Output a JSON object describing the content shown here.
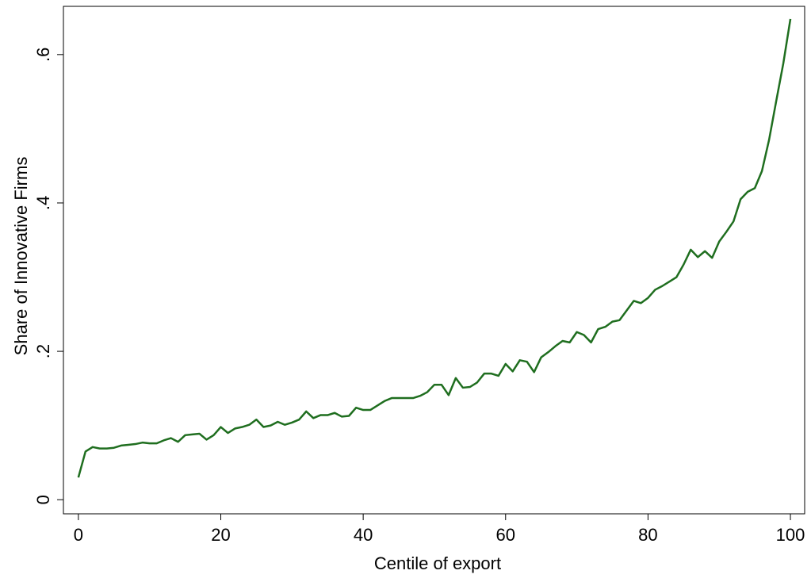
{
  "chart_data": {
    "type": "line",
    "xlabel": "Centile of export",
    "ylabel": "Share of Innovative Firms",
    "color": "#1f6e1f",
    "x": [
      0,
      1,
      2,
      3,
      4,
      5,
      6,
      7,
      8,
      9,
      10,
      11,
      12,
      13,
      14,
      15,
      16,
      17,
      18,
      19,
      20,
      21,
      22,
      23,
      24,
      25,
      26,
      27,
      28,
      29,
      30,
      31,
      32,
      33,
      34,
      35,
      36,
      37,
      38,
      39,
      40,
      41,
      42,
      43,
      44,
      45,
      46,
      47,
      48,
      49,
      50,
      51,
      52,
      53,
      54,
      55,
      56,
      57,
      58,
      59,
      60,
      61,
      62,
      63,
      64,
      65,
      66,
      67,
      68,
      69,
      70,
      71,
      72,
      73,
      74,
      75,
      76,
      77,
      78,
      79,
      80,
      81,
      82,
      83,
      84,
      85,
      86,
      87,
      88,
      89,
      90,
      91,
      92,
      93,
      94,
      95,
      96,
      97,
      98,
      99,
      100
    ],
    "values": [
      0.03,
      0.065,
      0.071,
      0.069,
      0.069,
      0.07,
      0.073,
      0.074,
      0.075,
      0.077,
      0.076,
      0.076,
      0.08,
      0.083,
      0.078,
      0.087,
      0.088,
      0.089,
      0.081,
      0.087,
      0.098,
      0.09,
      0.096,
      0.098,
      0.101,
      0.108,
      0.098,
      0.1,
      0.105,
      0.101,
      0.104,
      0.108,
      0.119,
      0.11,
      0.114,
      0.114,
      0.117,
      0.112,
      0.113,
      0.124,
      0.121,
      0.121,
      0.127,
      0.133,
      0.137,
      0.137,
      0.137,
      0.137,
      0.14,
      0.145,
      0.155,
      0.155,
      0.141,
      0.164,
      0.151,
      0.152,
      0.158,
      0.17,
      0.17,
      0.167,
      0.183,
      0.173,
      0.188,
      0.186,
      0.172,
      0.192,
      0.199,
      0.207,
      0.214,
      0.212,
      0.226,
      0.222,
      0.212,
      0.23,
      0.233,
      0.24,
      0.242,
      0.255,
      0.268,
      0.265,
      0.272,
      0.283,
      0.288,
      0.294,
      0.3,
      0.317,
      0.337,
      0.327,
      0.335,
      0.326,
      0.348,
      0.361,
      0.375,
      0.405,
      0.415,
      0.42,
      0.443,
      0.485,
      0.537,
      0.588,
      0.648
    ],
    "xlim": [
      -2.1,
      102
    ],
    "ylim": [
      -0.019,
      0.665
    ],
    "xticks": [
      0,
      20,
      40,
      60,
      80,
      100
    ],
    "yticks": [
      0,
      {
        "value": 0.2,
        "label": ".2"
      },
      {
        "value": 0.4,
        "label": ".4"
      },
      {
        "value": 0.6,
        "label": ".6"
      }
    ]
  }
}
